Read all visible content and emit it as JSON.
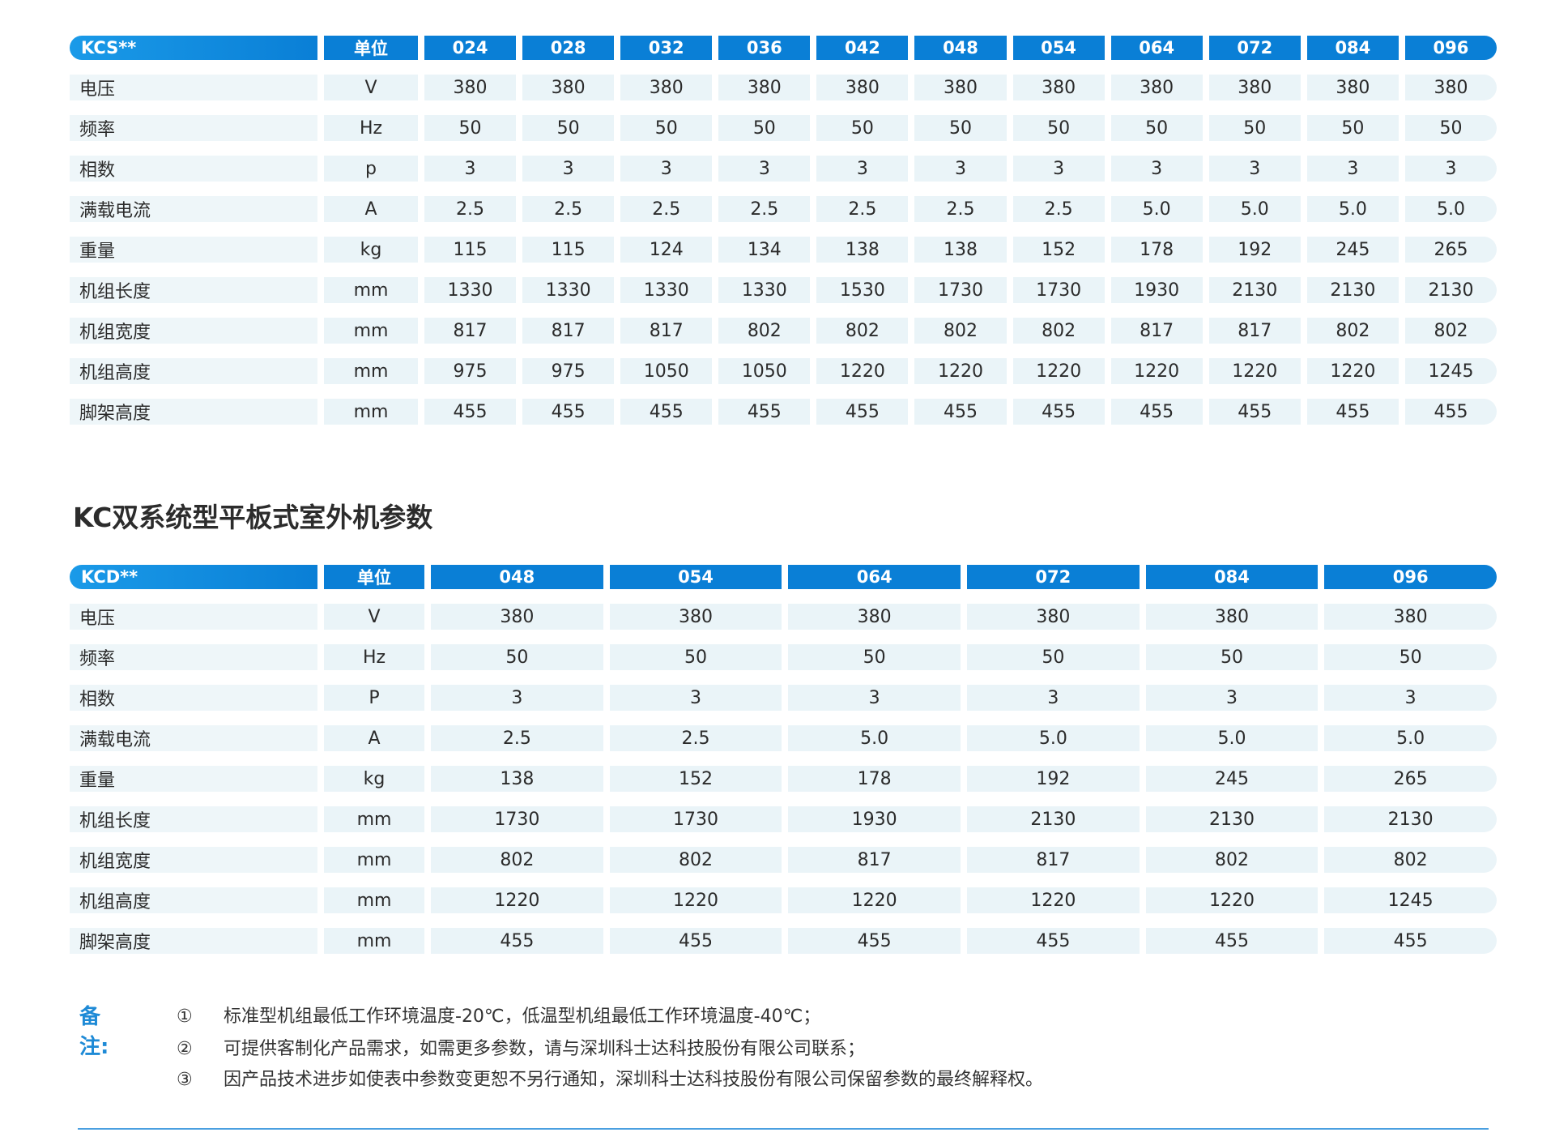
{
  "table1": {
    "header": [
      "KCS**",
      "单位",
      "024",
      "028",
      "032",
      "036",
      "042",
      "048",
      "054",
      "064",
      "072",
      "084",
      "096"
    ],
    "rows": [
      [
        "电压",
        "V",
        "380",
        "380",
        "380",
        "380",
        "380",
        "380",
        "380",
        "380",
        "380",
        "380",
        "380"
      ],
      [
        "频率",
        "Hz",
        "50",
        "50",
        "50",
        "50",
        "50",
        "50",
        "50",
        "50",
        "50",
        "50",
        "50"
      ],
      [
        "相数",
        "p",
        "3",
        "3",
        "3",
        "3",
        "3",
        "3",
        "3",
        "3",
        "3",
        "3",
        "3"
      ],
      [
        "满载电流",
        "A",
        "2.5",
        "2.5",
        "2.5",
        "2.5",
        "2.5",
        "2.5",
        "2.5",
        "5.0",
        "5.0",
        "5.0",
        "5.0"
      ],
      [
        "重量",
        "kg",
        "115",
        "115",
        "124",
        "134",
        "138",
        "138",
        "152",
        "178",
        "192",
        "245",
        "265"
      ],
      [
        "机组长度",
        "mm",
        "1330",
        "1330",
        "1330",
        "1330",
        "1530",
        "1730",
        "1730",
        "1930",
        "2130",
        "2130",
        "2130"
      ],
      [
        "机组宽度",
        "mm",
        "817",
        "817",
        "817",
        "802",
        "802",
        "802",
        "802",
        "817",
        "817",
        "802",
        "802"
      ],
      [
        "机组高度",
        "mm",
        "975",
        "975",
        "1050",
        "1050",
        "1220",
        "1220",
        "1220",
        "1220",
        "1220",
        "1220",
        "1245"
      ],
      [
        "脚架高度",
        "mm",
        "455",
        "455",
        "455",
        "455",
        "455",
        "455",
        "455",
        "455",
        "455",
        "455",
        "455"
      ]
    ]
  },
  "section2_title": "KC双系统型平板式室外机参数",
  "table2": {
    "header": [
      "KCD**",
      "单位",
      "048",
      "054",
      "064",
      "072",
      "084",
      "096"
    ],
    "rows": [
      [
        "电压",
        "V",
        "380",
        "380",
        "380",
        "380",
        "380",
        "380"
      ],
      [
        "频率",
        "Hz",
        "50",
        "50",
        "50",
        "50",
        "50",
        "50"
      ],
      [
        "相数",
        "P",
        "3",
        "3",
        "3",
        "3",
        "3",
        "3"
      ],
      [
        "满载电流",
        "A",
        "2.5",
        "2.5",
        "5.0",
        "5.0",
        "5.0",
        "5.0"
      ],
      [
        "重量",
        "kg",
        "138",
        "152",
        "178",
        "192",
        "245",
        "265"
      ],
      [
        "机组长度",
        "mm",
        "1730",
        "1730",
        "1930",
        "2130",
        "2130",
        "2130"
      ],
      [
        "机组宽度",
        "mm",
        "802",
        "802",
        "817",
        "817",
        "802",
        "802"
      ],
      [
        "机组高度",
        "mm",
        "1220",
        "1220",
        "1220",
        "1220",
        "1220",
        "1245"
      ],
      [
        "脚架高度",
        "mm",
        "455",
        "455",
        "455",
        "455",
        "455",
        "455"
      ]
    ]
  },
  "notes": {
    "label": "备注:",
    "items": [
      {
        "num": "①",
        "text": "标准型机组最低工作环境温度-20℃，低温型机组最低工作环境温度-40℃；"
      },
      {
        "num": "②",
        "text": "可提供客制化产品需求，如需更多参数，请与深圳科士达科技股份有限公司联系；"
      },
      {
        "num": "③",
        "text": "因产品技术进步如使表中参数变更恕不另行通知，深圳科士达科技股份有限公司保留参数的最终解释权。"
      }
    ]
  }
}
